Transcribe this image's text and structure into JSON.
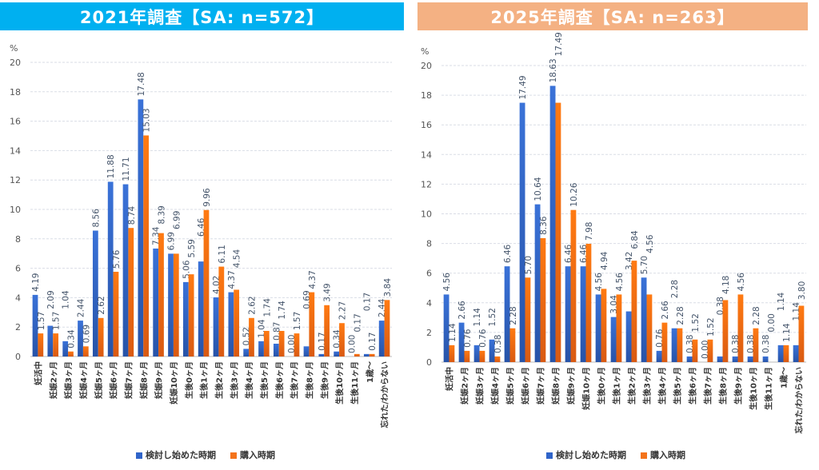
{
  "colors": {
    "s1": "#2f64c9",
    "s2": "#f4731a",
    "title1_bg": "#00b0f0",
    "title2_bg": "#f4b183"
  },
  "chart_data": [
    {
      "type": "bar",
      "title": "2021年調査【SA: n=572】",
      "ylabel": "%",
      "ylim": [
        0,
        20
      ],
      "yticks": [
        0,
        2,
        4,
        6,
        8,
        10,
        12,
        14,
        16,
        18,
        20
      ],
      "grid": true,
      "legend": "bottom",
      "categories": [
        "妊活中",
        "妊娠2ヶ月",
        "妊娠3ヶ月",
        "妊娠4ヶ月",
        "妊娠5ヶ月",
        "妊娠6ヶ月",
        "妊娠7ヶ月",
        "妊娠8ヶ月",
        "妊娠9ヶ月",
        "妊娠10ヶ月",
        "生後0ヶ月",
        "生後1ヶ月",
        "生後2ヶ月",
        "生後3ヶ月",
        "生後4ヶ月",
        "生後5ヶ月",
        "生後6ヶ月",
        "生後7ヶ月",
        "生後8ヶ月",
        "生後9ヶ月",
        "生後10ヶ月",
        "生後11ヶ月",
        "1歳～",
        "忘れた/わからない"
      ],
      "series": [
        {
          "name": "検討し始めた時期",
          "values": [
            4.19,
            2.09,
            1.04,
            2.44,
            8.56,
            11.88,
            11.71,
            17.48,
            7.34,
            6.99,
            5.06,
            6.46,
            4.02,
            4.37,
            0.52,
            1.04,
            0.87,
            0.0,
            0.69,
            0.17,
            0.34,
            0.0,
            0.17,
            2.44
          ]
        },
        {
          "name": "購入時期",
          "values": [
            1.57,
            1.57,
            0.34,
            0.69,
            2.62,
            5.76,
            8.74,
            15.03,
            8.39,
            6.99,
            5.59,
            9.96,
            6.11,
            4.54,
            2.62,
            1.74,
            1.74,
            1.57,
            4.37,
            3.49,
            2.27,
            0.17,
            0.17,
            3.84
          ]
        }
      ]
    },
    {
      "type": "bar",
      "title": "2025年調査【SA: n=263】",
      "ylabel": "%",
      "ylim": [
        0,
        20
      ],
      "yticks": [
        0,
        2,
        4,
        6,
        8,
        10,
        12,
        14,
        16,
        18,
        20
      ],
      "grid": true,
      "legend": "bottom",
      "categories": [
        "妊活中",
        "妊娠2ヶ月",
        "妊娠3ヶ月",
        "妊娠4ヶ月",
        "妊娠5ヶ月",
        "妊娠6ヶ月",
        "妊娠7ヶ月",
        "妊娠8ヶ月",
        "妊娠9ヶ月",
        "妊娠10ヶ月",
        "生後0ヶ月",
        "生後1ヶ月",
        "生後2ヶ月",
        "生後3ヶ月",
        "生後4ヶ月",
        "生後5ヶ月",
        "生後6ヶ月",
        "生後7ヶ月",
        "生後8ヶ月",
        "生後9ヶ月",
        "生後10ヶ月",
        "生後11ヶ月",
        "1歳～",
        "忘れた/わからない"
      ],
      "series": [
        {
          "name": "検討し始めた時期",
          "values": [
            4.56,
            2.66,
            1.14,
            1.52,
            6.46,
            17.49,
            10.64,
            18.63,
            6.46,
            6.46,
            4.56,
            3.04,
            3.42,
            5.7,
            0.76,
            2.28,
            0.38,
            0.0,
            0.38,
            0.38,
            0.38,
            0.38,
            1.14,
            1.14
          ]
        },
        {
          "name": "購入時期",
          "values": [
            1.14,
            0.76,
            0.76,
            0.38,
            2.28,
            5.7,
            8.36,
            17.49,
            10.26,
            7.98,
            4.94,
            4.56,
            6.84,
            4.56,
            2.66,
            2.28,
            1.52,
            1.52,
            4.18,
            4.56,
            2.28,
            0.0,
            1.14,
            3.8
          ]
        }
      ]
    }
  ]
}
